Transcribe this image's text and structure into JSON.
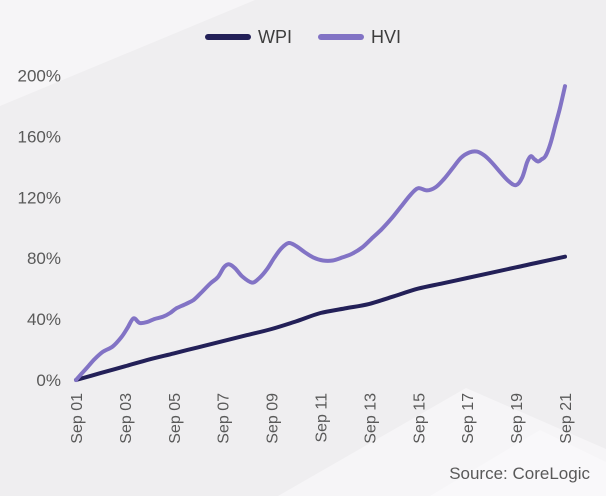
{
  "chart_data": {
    "type": "line",
    "title": "",
    "grid": false,
    "legend_position": "top-center",
    "x_axis": {
      "range": [
        2001,
        2021
      ],
      "ticks": [
        {
          "v": 2001,
          "label": "Sep 01"
        },
        {
          "v": 2003,
          "label": "Sep 03"
        },
        {
          "v": 2005,
          "label": "Sep 05"
        },
        {
          "v": 2007,
          "label": "Sep 07"
        },
        {
          "v": 2009,
          "label": "Sep 09"
        },
        {
          "v": 2011,
          "label": "Sep 11"
        },
        {
          "v": 2013,
          "label": "Sep 13"
        },
        {
          "v": 2015,
          "label": "Sep 15"
        },
        {
          "v": 2017,
          "label": "Sep 17"
        },
        {
          "v": 2019,
          "label": "Sep 19"
        },
        {
          "v": 2021,
          "label": "Sep 21"
        }
      ]
    },
    "y_axis": {
      "range": [
        0,
        200
      ],
      "unit": "%",
      "ticks": [
        {
          "v": 0,
          "label": "0%"
        },
        {
          "v": 40,
          "label": "40%"
        },
        {
          "v": 80,
          "label": "80%"
        },
        {
          "v": 120,
          "label": "120%"
        },
        {
          "v": 160,
          "label": "160%"
        },
        {
          "v": 200,
          "label": "200%"
        }
      ]
    },
    "series": [
      {
        "name": "WPI",
        "color": "#232058",
        "points": [
          [
            2001,
            0
          ],
          [
            2002,
            4.5
          ],
          [
            2003,
            9
          ],
          [
            2004,
            13.5
          ],
          [
            2005,
            17.5
          ],
          [
            2006,
            21.5
          ],
          [
            2007,
            25.5
          ],
          [
            2008,
            29.5
          ],
          [
            2009,
            33.5
          ],
          [
            2010,
            38.5
          ],
          [
            2011,
            44
          ],
          [
            2012,
            47
          ],
          [
            2013,
            50
          ],
          [
            2014,
            55
          ],
          [
            2015,
            60
          ],
          [
            2016,
            63.5
          ],
          [
            2017,
            67
          ],
          [
            2018,
            70.5
          ],
          [
            2019,
            74
          ],
          [
            2020,
            77.5
          ],
          [
            2021,
            81
          ]
        ]
      },
      {
        "name": "HVI",
        "color": "#8273C5",
        "points": [
          [
            2001,
            0
          ],
          [
            2001.25,
            4.5
          ],
          [
            2001.5,
            9
          ],
          [
            2001.75,
            13.5
          ],
          [
            2002.1,
            18.5
          ],
          [
            2002.5,
            22
          ],
          [
            2002.85,
            28
          ],
          [
            2003.1,
            34
          ],
          [
            2003.35,
            40.5
          ],
          [
            2003.6,
            37.5
          ],
          [
            2003.9,
            38
          ],
          [
            2004.2,
            40
          ],
          [
            2004.55,
            41.5
          ],
          [
            2004.85,
            44
          ],
          [
            2005.1,
            47
          ],
          [
            2005.5,
            50
          ],
          [
            2005.8,
            52.5
          ],
          [
            2006.1,
            57
          ],
          [
            2006.5,
            63.5
          ],
          [
            2006.8,
            67.5
          ],
          [
            2007.05,
            74
          ],
          [
            2007.25,
            76
          ],
          [
            2007.5,
            73.5
          ],
          [
            2007.8,
            68
          ],
          [
            2008.2,
            64
          ],
          [
            2008.5,
            67
          ],
          [
            2008.8,
            72.5
          ],
          [
            2009.1,
            80
          ],
          [
            2009.4,
            86.5
          ],
          [
            2009.7,
            90
          ],
          [
            2010,
            88
          ],
          [
            2010.35,
            84
          ],
          [
            2010.7,
            80.5
          ],
          [
            2011.1,
            78.5
          ],
          [
            2011.5,
            78.5
          ],
          [
            2011.9,
            80.5
          ],
          [
            2012.3,
            83
          ],
          [
            2012.7,
            87
          ],
          [
            2013.1,
            93
          ],
          [
            2013.5,
            99
          ],
          [
            2013.9,
            106
          ],
          [
            2014.3,
            114
          ],
          [
            2014.7,
            122
          ],
          [
            2015,
            126
          ],
          [
            2015.35,
            124.5
          ],
          [
            2015.7,
            126.5
          ],
          [
            2016.05,
            132
          ],
          [
            2016.4,
            139
          ],
          [
            2016.75,
            146
          ],
          [
            2017.1,
            149.5
          ],
          [
            2017.4,
            150
          ],
          [
            2017.7,
            147.5
          ],
          [
            2018,
            143
          ],
          [
            2018.35,
            136.5
          ],
          [
            2018.7,
            130.5
          ],
          [
            2019,
            128
          ],
          [
            2019.25,
            133
          ],
          [
            2019.45,
            143
          ],
          [
            2019.6,
            147
          ],
          [
            2019.75,
            145
          ],
          [
            2019.9,
            143.5
          ],
          [
            2020.05,
            145
          ],
          [
            2020.2,
            147
          ],
          [
            2020.4,
            155
          ],
          [
            2020.6,
            167
          ],
          [
            2020.8,
            179
          ],
          [
            2021,
            193
          ]
        ]
      }
    ],
    "source_note": "Source: CoreLogic"
  },
  "colors": {
    "background": "#efeef0",
    "background_highlight": "#f6f5f7",
    "background_highlight_bright": "#f9f8fa",
    "axis_text": "#595959",
    "legend_text": "#3d3d3d"
  }
}
